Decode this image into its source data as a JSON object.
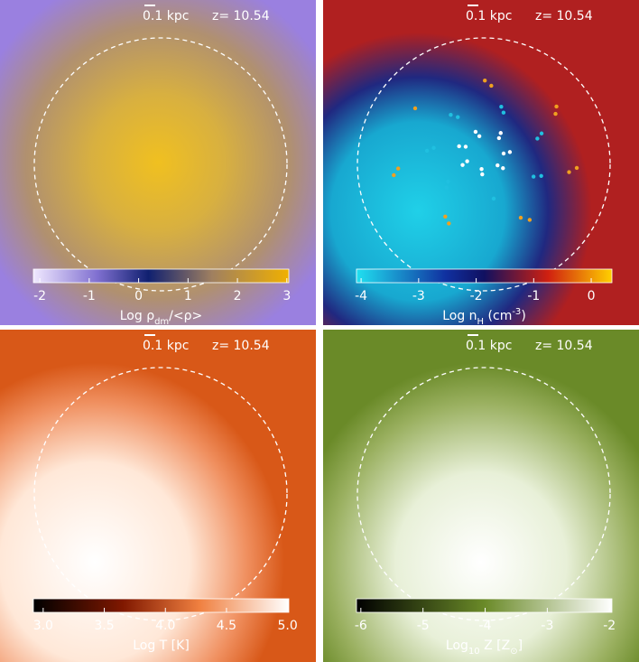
{
  "panels": [
    {
      "scale": "0.1 kpc",
      "redshift": "z= 10.54",
      "colorbar": {
        "lim": [
          -2.13,
          3.04
        ],
        "ticks": [
          -2,
          -1,
          0,
          1,
          2,
          3
        ],
        "label": [
          {
            "text": "Log ρ"
          },
          {
            "text": "dm",
            "sub": true
          },
          {
            "text": "/<ρ>"
          }
        ]
      }
    },
    {
      "scale": "0.1 kpc",
      "redshift": "z= 10.54",
      "colorbar": {
        "lim": [
          -4.08,
          0.36
        ],
        "ticks": [
          -4,
          -3,
          -2,
          -1,
          0
        ],
        "label": [
          {
            "text": "Log n"
          },
          {
            "text": "H",
            "sub": true
          },
          {
            "text": " (cm"
          },
          {
            "text": "-3",
            "sup": true
          },
          {
            "text": ")"
          }
        ]
      }
    },
    {
      "scale": "0.1 kpc",
      "redshift": "z= 10.54",
      "colorbar": {
        "lim": [
          2.92,
          5.01
        ],
        "ticks": [
          {
            "value": 3,
            "label": "3.0"
          },
          {
            "value": 3.5,
            "label": "3.5"
          },
          {
            "value": 4,
            "label": "4.0"
          },
          {
            "value": 4.5,
            "label": "4.5"
          },
          {
            "value": 5,
            "label": "5.0"
          }
        ],
        "label": [
          {
            "text": "Log T [K]"
          }
        ]
      }
    },
    {
      "scale": "0.1 kpc",
      "redshift": "z= 10.54",
      "colorbar": {
        "lim": [
          -6.07,
          -1.96
        ],
        "ticks": [
          -6,
          -5,
          -4,
          -3,
          -2
        ],
        "label": [
          {
            "text": "Log"
          },
          {
            "text": "10",
            "sub": true
          },
          {
            "text": " Z [Z"
          },
          {
            "text": "⊙",
            "sub": true
          },
          {
            "text": "]"
          }
        ]
      }
    }
  ]
}
